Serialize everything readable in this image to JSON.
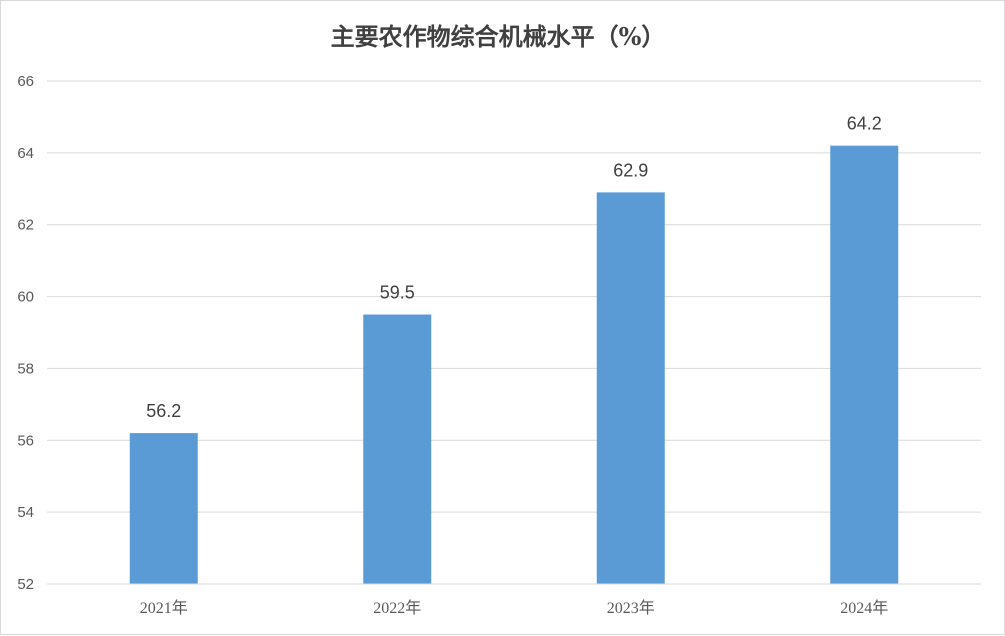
{
  "chart_data": {
    "type": "bar",
    "title": "主要农作物综合机械水平（%）",
    "categories": [
      "2021年",
      "2022年",
      "2023年",
      "2024年"
    ],
    "values": [
      56.2,
      59.5,
      62.9,
      64.2
    ],
    "data_labels": [
      "56.2",
      "59.5",
      "62.9",
      "64.2"
    ],
    "y_ticks": [
      "52",
      "54",
      "56",
      "58",
      "60",
      "62",
      "64",
      "66"
    ],
    "ylim": [
      52,
      66
    ],
    "xlabel": "",
    "ylabel": "",
    "grid": true,
    "legend": "none",
    "bar_color": "#5b9bd5",
    "grid_color": "#d9d9d9"
  }
}
